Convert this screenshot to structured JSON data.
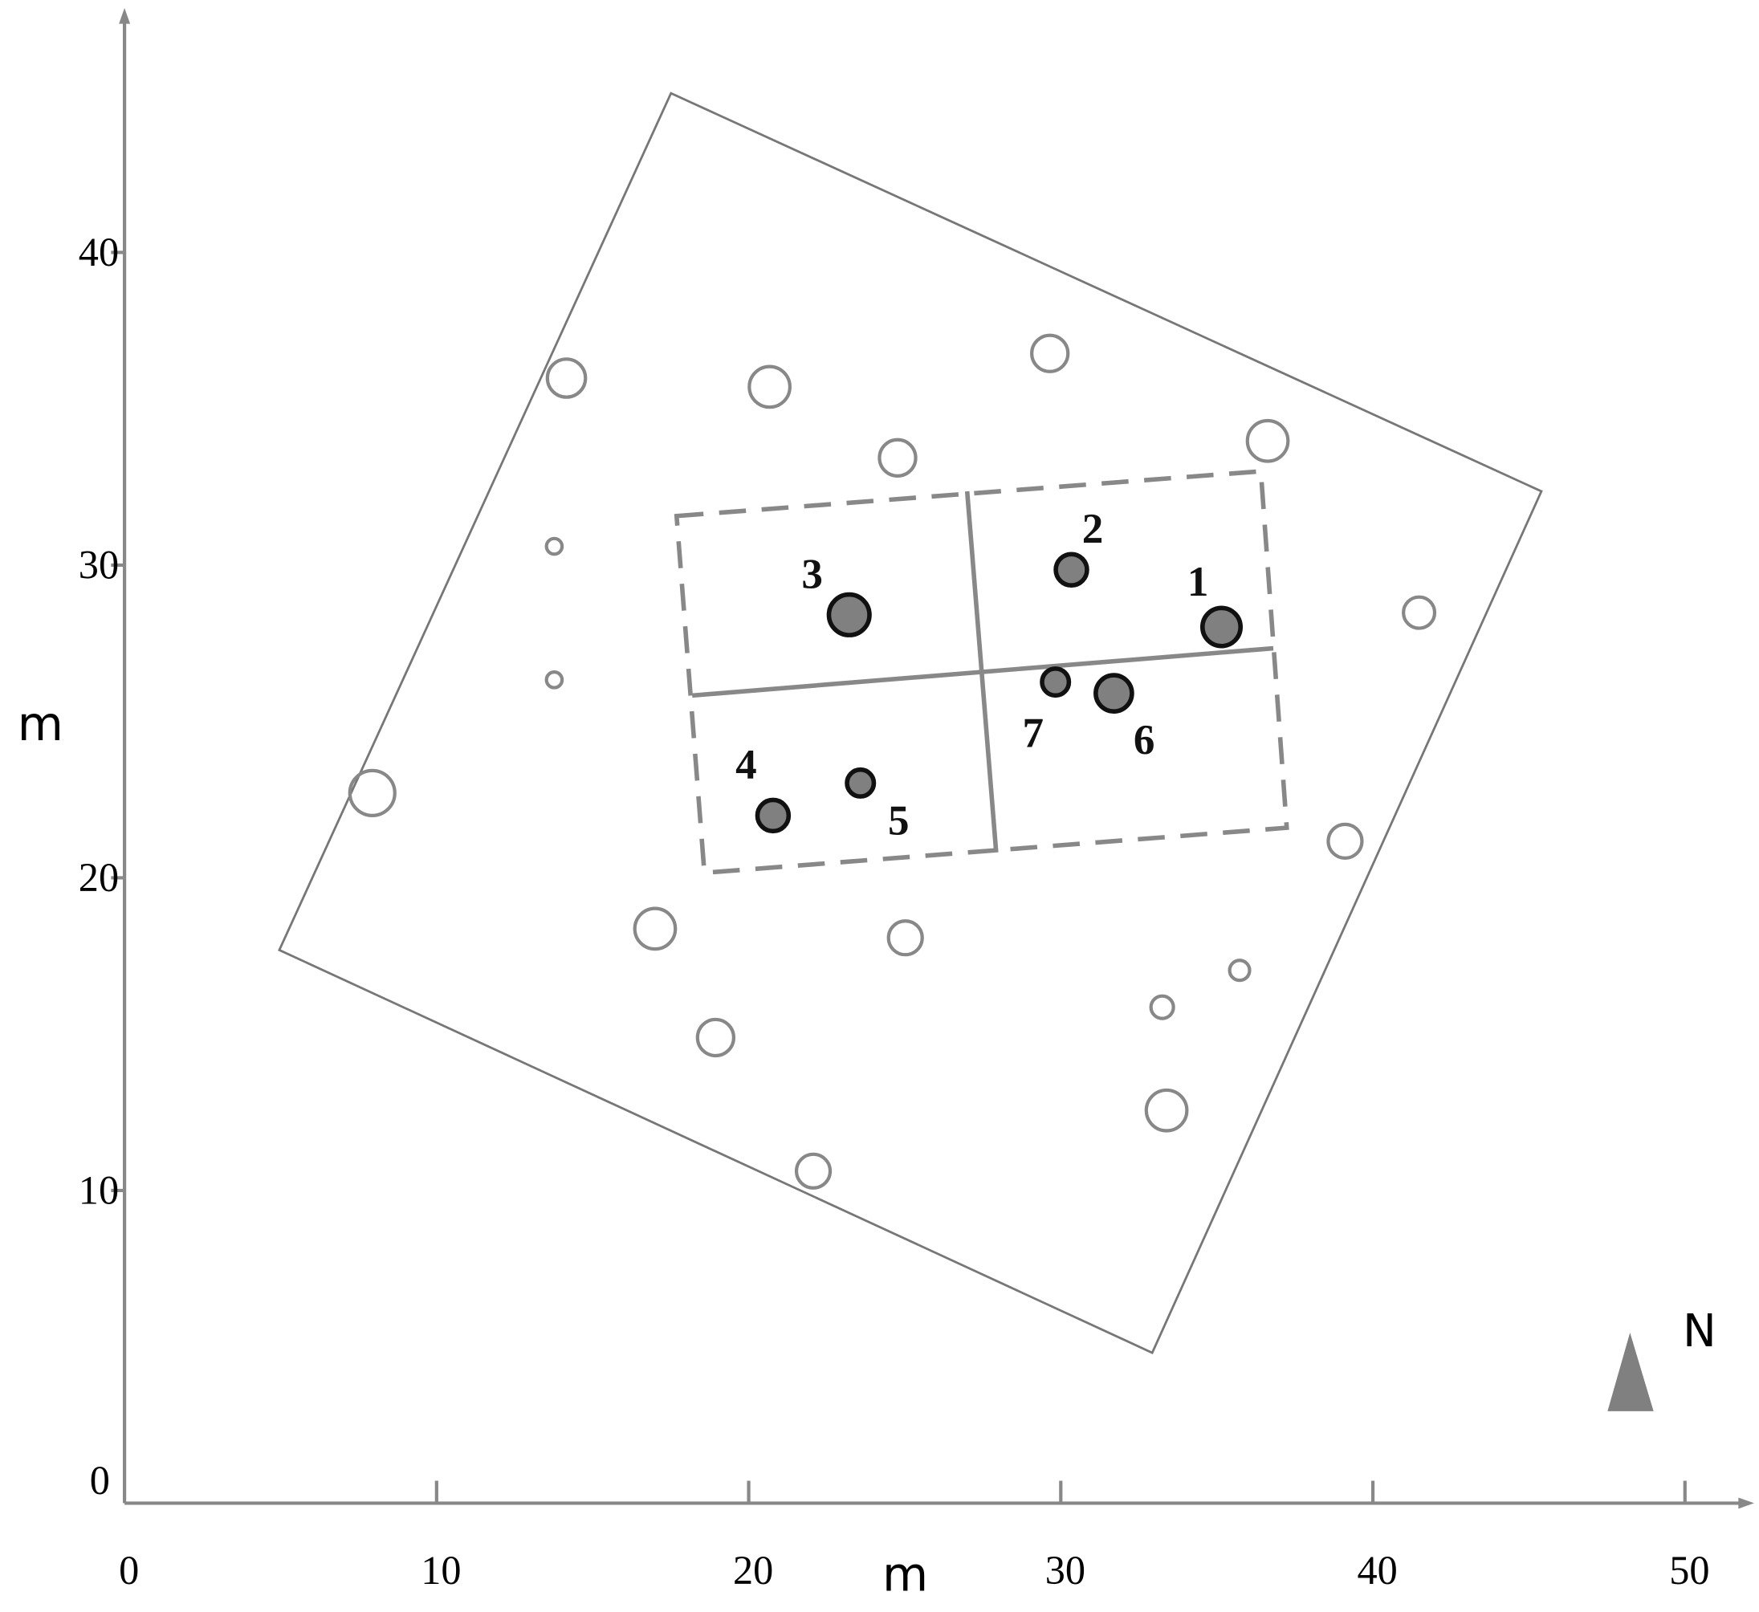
{
  "chart_data": {
    "type": "scatter",
    "x_label": "m",
    "y_label": "m",
    "north_label": "N",
    "xlim": [
      0,
      52
    ],
    "ylim": [
      0,
      47.6
    ],
    "xticks": [
      0,
      10,
      20,
      30,
      40,
      50
    ],
    "yticks": [
      0,
      10,
      20,
      30,
      40
    ],
    "boundary": {
      "color": "#777777",
      "x": [
        17.51,
        45.4,
        32.93,
        4.96
      ],
      "y": [
        45.09,
        32.36,
        4.81,
        17.69
      ]
    },
    "subplot": {
      "color": "#888888",
      "x": [
        17.69,
        36.41,
        37.24,
        18.58
      ],
      "y": [
        31.57,
        33.0,
        21.6,
        20.16
      ]
    },
    "dividers": [
      {
        "color": "#888888",
        "x": [
          27.0,
          27.93
        ],
        "y": [
          32.36,
          20.81
        ]
      },
      {
        "color": "#888888",
        "x": [
          18.19,
          36.81
        ],
        "y": [
          25.83,
          27.34
        ]
      }
    ],
    "series": [
      {
        "color": "#888888",
        "x": [
          14.16,
          20.67,
          29.65,
          24.77,
          36.63,
          13.77,
          13.77,
          41.48,
          7.94,
          39.11,
          17.0,
          25.02,
          35.73,
          33.25,
          18.94,
          33.39,
          22.07
        ],
        "y": [
          35.98,
          35.7,
          36.77,
          33.43,
          33.97,
          30.6,
          26.33,
          28.48,
          22.71,
          21.17,
          18.37,
          18.08,
          17.04,
          15.86,
          14.89,
          12.56,
          10.62
        ],
        "size": [
          0.61,
          0.65,
          0.58,
          0.58,
          0.65,
          0.25,
          0.25,
          0.5,
          0.72,
          0.54,
          0.65,
          0.54,
          0.32,
          0.36,
          0.58,
          0.65,
          0.54
        ]
      },
      {
        "color": "#808080",
        "x": [
          35.15,
          30.34,
          23.22,
          20.78,
          23.58,
          31.7,
          29.83
        ],
        "y": [
          28.02,
          29.85,
          28.41,
          21.99,
          23.03,
          25.9,
          26.26
        ],
        "size": [
          0.61,
          0.5,
          0.65,
          0.5,
          0.43,
          0.58,
          0.43
        ],
        "labels": [
          1,
          2,
          3,
          4,
          5,
          6,
          7
        ]
      }
    ]
  }
}
